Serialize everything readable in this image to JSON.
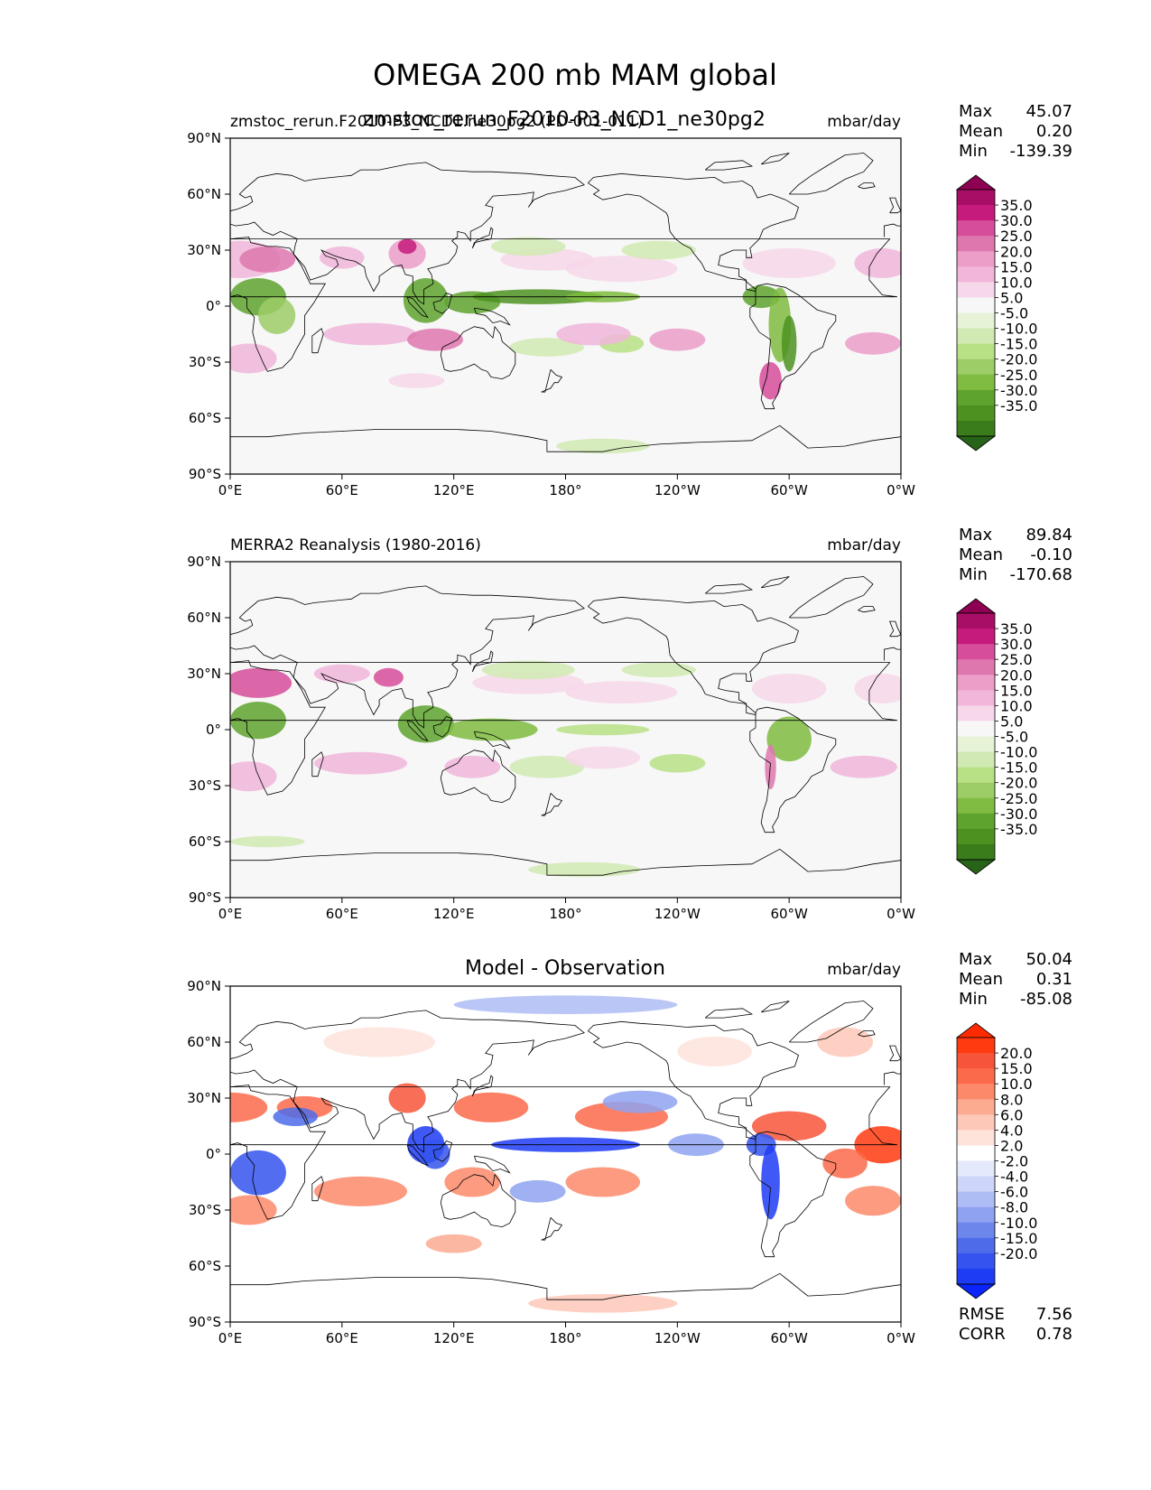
{
  "chart_data": {
    "type": "contour_map",
    "title": "OMEGA 200 mb MAM global",
    "overlay_title": "zmstoc_rerun_F2010-P3_NCD1_ne30pg2",
    "lon_ticks": [
      "0°E",
      "60°E",
      "120°E",
      "180°",
      "120°W",
      "60°W",
      "0°W"
    ],
    "lat_ticks": [
      "90°N",
      "60°N",
      "30°N",
      "0°",
      "30°S",
      "60°S",
      "90°S"
    ],
    "panels": [
      {
        "id": "model",
        "left_label": "zmstoc_rerun.F2010-P3_NCD1.ne30pg2 (PD-001-011)",
        "center_label": "",
        "units": "mbar/day",
        "stats": [
          {
            "label": "Max",
            "value": "45.07"
          },
          {
            "label": "Mean",
            "value": "0.20"
          },
          {
            "label": "Min",
            "value": "-139.39"
          }
        ],
        "colorbar": {
          "levels": [
            "35.0",
            "30.0",
            "25.0",
            "20.0",
            "15.0",
            "10.0",
            "5.0",
            "-5.0",
            "-10.0",
            "-15.0",
            "-20.0",
            "-25.0",
            "-30.0",
            "-35.0"
          ],
          "colors": [
            "#8e0152",
            "#a90e66",
            "#c51b7d",
            "#d64e9b",
            "#de77ae",
            "#ec9ec9",
            "#f1b6da",
            "#f7d7ea",
            "#f7f7f7",
            "#e6f3d7",
            "#d1eab3",
            "#b8e186",
            "#9dcd67",
            "#7fbc41",
            "#5ea32e",
            "#4d9221",
            "#3a7b1c",
            "#276419"
          ]
        }
      },
      {
        "id": "obs",
        "left_label": "MERRA2 Reanalysis (1980-2016)",
        "center_label": "",
        "units": "mbar/day",
        "stats": [
          {
            "label": "Max",
            "value": "89.84"
          },
          {
            "label": "Mean",
            "value": "-0.10"
          },
          {
            "label": "Min",
            "value": "-170.68"
          }
        ],
        "colorbar": {
          "levels": [
            "35.0",
            "30.0",
            "25.0",
            "20.0",
            "15.0",
            "10.0",
            "5.0",
            "-5.0",
            "-10.0",
            "-15.0",
            "-20.0",
            "-25.0",
            "-30.0",
            "-35.0"
          ],
          "colors": [
            "#8e0152",
            "#a90e66",
            "#c51b7d",
            "#d64e9b",
            "#de77ae",
            "#ec9ec9",
            "#f1b6da",
            "#f7d7ea",
            "#f7f7f7",
            "#e6f3d7",
            "#d1eab3",
            "#b8e186",
            "#9dcd67",
            "#7fbc41",
            "#5ea32e",
            "#4d9221",
            "#3a7b1c",
            "#276419"
          ]
        }
      },
      {
        "id": "diff",
        "left_label": "",
        "center_label": "Model - Observation",
        "units": "mbar/day",
        "stats": [
          {
            "label": "Max",
            "value": "50.04"
          },
          {
            "label": "Mean",
            "value": "0.31"
          },
          {
            "label": "Min",
            "value": "-85.08"
          }
        ],
        "extra_stats": [
          {
            "label": "RMSE",
            "value": "7.56"
          },
          {
            "label": "CORR",
            "value": "0.78"
          }
        ],
        "colorbar": {
          "levels": [
            "20.0",
            "15.0",
            "10.0",
            "8.0",
            "6.0",
            "4.0",
            "2.0",
            "-2.0",
            "-4.0",
            "-6.0",
            "-8.0",
            "-10.0",
            "-15.0",
            "-20.0"
          ],
          "colors": [
            "#ff2a00",
            "#ff3a10",
            "#f7553a",
            "#fb6a4a",
            "#fc8a6a",
            "#fcaa90",
            "#fdc8b8",
            "#fee3da",
            "#ffffff",
            "#e4e9fc",
            "#cdd6fa",
            "#aebdf5",
            "#8ea2f1",
            "#6d86ec",
            "#4e6cea",
            "#3553ee",
            "#1f3cf5",
            "#0a24fa"
          ]
        }
      }
    ]
  }
}
